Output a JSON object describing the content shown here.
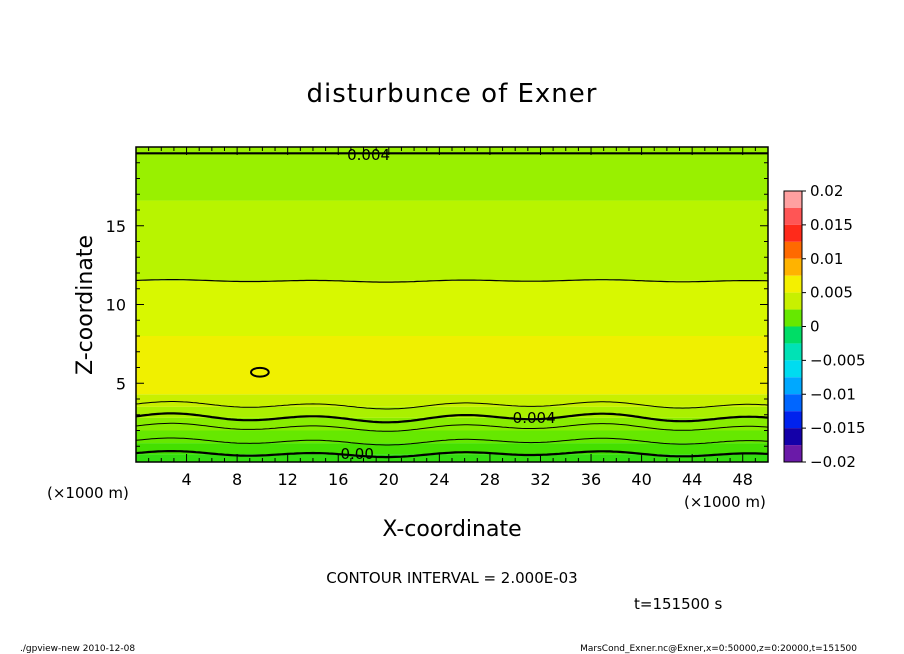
{
  "chart_data": {
    "type": "heatmap",
    "title": "disturbunce of Exner",
    "xlabel": "X-coordinate",
    "ylabel": "Z-coordinate",
    "x_unit": "(×1000 m)",
    "y_unit": "(×1000 m)",
    "xlim": [
      0,
      50
    ],
    "ylim": [
      0,
      20
    ],
    "x_ticks": [
      4,
      8,
      12,
      16,
      20,
      24,
      28,
      32,
      36,
      40,
      44,
      48
    ],
    "y_ticks": [
      5,
      10,
      15
    ],
    "colorbar": {
      "min": -0.02,
      "max": 0.02,
      "labels": [
        "0.02",
        "0.015",
        "0.01",
        "0.005",
        "0",
        "−0.005",
        "−0.01",
        "−0.015",
        "−0.02"
      ],
      "label_values": [
        0.02,
        0.015,
        0.01,
        0.005,
        0,
        -0.005,
        -0.01,
        -0.015,
        -0.02
      ],
      "levels": [
        {
          "lo": 0.0175,
          "hi": 0.02,
          "color": "#ffa0a0"
        },
        {
          "lo": 0.015,
          "hi": 0.0175,
          "color": "#ff5555"
        },
        {
          "lo": 0.0125,
          "hi": 0.015,
          "color": "#ff2a1a"
        },
        {
          "lo": 0.01,
          "hi": 0.0125,
          "color": "#ff6a00"
        },
        {
          "lo": 0.0075,
          "hi": 0.01,
          "color": "#ffb300"
        },
        {
          "lo": 0.005,
          "hi": 0.0075,
          "color": "#f4f000"
        },
        {
          "lo": 0.0025,
          "hi": 0.005,
          "color": "#c8f000"
        },
        {
          "lo": 0.0,
          "hi": 0.0025,
          "color": "#66e800"
        },
        {
          "lo": -0.0025,
          "hi": 0.0,
          "color": "#00dd66"
        },
        {
          "lo": -0.005,
          "hi": -0.0025,
          "color": "#00e2b5"
        },
        {
          "lo": -0.0075,
          "hi": -0.005,
          "color": "#00dcf0"
        },
        {
          "lo": -0.01,
          "hi": -0.0075,
          "color": "#00a8ff"
        },
        {
          "lo": -0.0125,
          "hi": -0.01,
          "color": "#0066ff"
        },
        {
          "lo": -0.015,
          "hi": -0.0125,
          "color": "#0022ee"
        },
        {
          "lo": -0.0175,
          "hi": -0.015,
          "color": "#1400a8"
        },
        {
          "lo": -0.02,
          "hi": -0.0175,
          "color": "#6a1aa8"
        }
      ]
    },
    "field_bands": [
      {
        "z_lo": 0.0,
        "z_hi": 0.5,
        "color": "#33dd11"
      },
      {
        "z_lo": 0.5,
        "z_hi": 1.2,
        "color": "#44e000"
      },
      {
        "z_lo": 1.2,
        "z_hi": 2.0,
        "color": "#66e800"
      },
      {
        "z_lo": 2.0,
        "z_hi": 2.8,
        "color": "#88ec00"
      },
      {
        "z_lo": 2.8,
        "z_hi": 3.5,
        "color": "#aaf000"
      },
      {
        "z_lo": 3.5,
        "z_hi": 4.3,
        "color": "#c8f000"
      },
      {
        "z_lo": 4.3,
        "z_hi": 8.0,
        "color": "#f0f000"
      },
      {
        "z_lo": 8.0,
        "z_hi": 11.5,
        "color": "#d8f800"
      },
      {
        "z_lo": 11.5,
        "z_hi": 16.6,
        "color": "#b8f400"
      },
      {
        "z_lo": 16.6,
        "z_hi": 20.0,
        "color": "#99f000"
      }
    ],
    "contours": [
      {
        "z": 0.5,
        "amp": 0.12,
        "width": 2.2
      },
      {
        "z": 1.3,
        "amp": 0.14,
        "width": 1.0
      },
      {
        "z": 2.2,
        "amp": 0.16,
        "width": 1.0
      },
      {
        "z": 2.8,
        "amp": 0.18,
        "width": 2.2
      },
      {
        "z": 3.6,
        "amp": 0.15,
        "width": 1.0
      },
      {
        "z": 11.5,
        "amp": 0.05,
        "width": 1.2
      },
      {
        "z": 19.6,
        "amp": 0.0,
        "width": 2.2
      }
    ],
    "contour_labels": [
      {
        "text": "0.004",
        "x": 31.5,
        "z": 2.8
      },
      {
        "text": "0.00",
        "x": 17.5,
        "z": 0.5
      },
      {
        "text": "0.004",
        "x": 18.4,
        "z": 19.5
      }
    ],
    "closed_contour": {
      "x": 9.8,
      "z": 5.7,
      "rx": 0.7,
      "rz": 0.28
    }
  },
  "footer": {
    "contour_interval": "CONTOUR INTERVAL = 2.000E-03",
    "time": "t=151500 s",
    "program": "./gpview-new   2010-12-08",
    "source": "MarsCond_Exner.nc@Exner,x=0:50000,z=0:20000,t=151500"
  }
}
